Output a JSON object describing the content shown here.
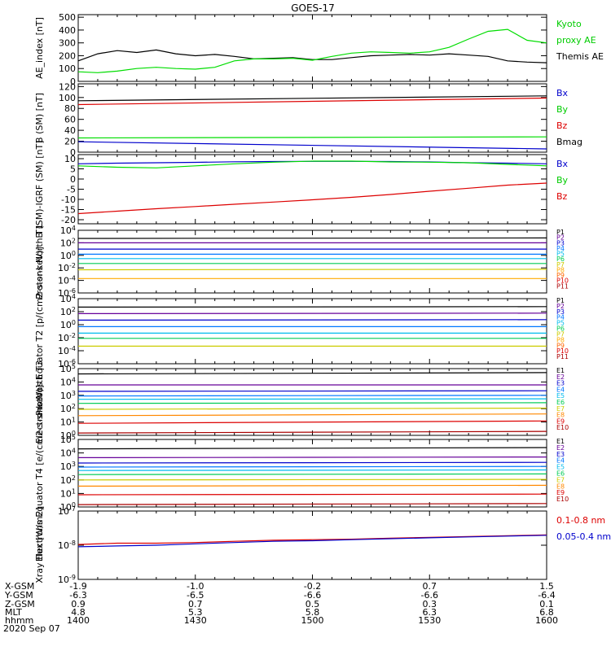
{
  "title": "GOES-17",
  "date": "2020 Sep 07",
  "colors": {
    "black": "#000000",
    "blue": "#0000cc",
    "green": "#00dd00",
    "red": "#dd0000",
    "label_green": "#00cc00"
  },
  "chart_data": [
    {
      "type": "line",
      "ylabel": "AE_index [nT]",
      "ylim": [
        0,
        520
      ],
      "yticks": [
        "0",
        "100",
        "200",
        "300",
        "400",
        "500"
      ],
      "legend": [
        {
          "text": "Kyoto",
          "color": "#00cc00"
        },
        {
          "text": "proxy AE",
          "color": "#00cc00"
        },
        {
          "text": "Themis AE",
          "color": "#000000"
        }
      ],
      "x": [
        0,
        5,
        10,
        15,
        20,
        25,
        30,
        35,
        40,
        45,
        50,
        55,
        60,
        65,
        70,
        75,
        80,
        85,
        90,
        95,
        100,
        105,
        110,
        115,
        120
      ],
      "series": [
        {
          "name": "Themis AE",
          "color": "#000000",
          "values": [
            160,
            215,
            240,
            225,
            245,
            215,
            200,
            210,
            195,
            175,
            180,
            185,
            170,
            170,
            185,
            200,
            205,
            210,
            205,
            215,
            205,
            195,
            160,
            150,
            145
          ]
        },
        {
          "name": "Kyoto proxy AE",
          "color": "#00dd00",
          "values": [
            75,
            68,
            80,
            100,
            110,
            100,
            95,
            110,
            160,
            175,
            175,
            180,
            165,
            195,
            220,
            230,
            225,
            220,
            230,
            265,
            330,
            390,
            405,
            320,
            300
          ]
        }
      ]
    },
    {
      "type": "line",
      "ylabel": "B (SM) [nT]",
      "ylim": [
        0,
        125
      ],
      "yticks": [
        "0",
        "20",
        "40",
        "60",
        "80",
        "100",
        "120"
      ],
      "legend": [
        {
          "text": "Bx",
          "color": "#0000cc"
        },
        {
          "text": "By",
          "color": "#00cc00"
        },
        {
          "text": "Bz",
          "color": "#dd0000"
        },
        {
          "text": "Bmag",
          "color": "#000000"
        }
      ],
      "x": [
        0,
        120
      ],
      "series": [
        {
          "name": "Bmag",
          "color": "#000000",
          "values": [
            94,
            103
          ]
        },
        {
          "name": "Bz",
          "color": "#dd0000",
          "values": [
            87,
            99
          ]
        },
        {
          "name": "By",
          "color": "#00dd00",
          "values": [
            26,
            28
          ]
        },
        {
          "name": "Bx",
          "color": "#0000cc",
          "values": [
            19,
            6
          ]
        }
      ]
    },
    {
      "type": "line",
      "ylabel": "B (SM)-IGRF (SM) [nT]",
      "ylim": [
        -22,
        12
      ],
      "yticks": [
        "-20",
        "-15",
        "-10",
        "-5",
        "0",
        "5",
        "10"
      ],
      "legend": [
        {
          "text": "Bx",
          "color": "#0000cc"
        },
        {
          "text": "By",
          "color": "#00cc00"
        },
        {
          "text": "Bz",
          "color": "#dd0000"
        }
      ],
      "x": [
        0,
        10,
        20,
        30,
        40,
        50,
        60,
        70,
        80,
        90,
        100,
        110,
        120
      ],
      "series": [
        {
          "name": "Bx",
          "color": "#0000cc",
          "values": [
            7.5,
            7.8,
            8.0,
            8.2,
            8.5,
            8.6,
            8.7,
            8.7,
            8.6,
            8.4,
            8.0,
            7.8,
            7.5
          ]
        },
        {
          "name": "By",
          "color": "#00dd00",
          "values": [
            6.5,
            5.8,
            5.5,
            6.5,
            7.5,
            8.3,
            8.8,
            8.8,
            8.4,
            8.3,
            8.0,
            7.2,
            6.5
          ]
        },
        {
          "name": "Bz",
          "color": "#dd0000",
          "values": [
            -17,
            -15.8,
            -14.6,
            -13.5,
            -12.4,
            -11.3,
            -10.2,
            -9.0,
            -7.6,
            -6.0,
            -4.5,
            -3.0,
            -2.0
          ]
        }
      ]
    },
    {
      "type": "line",
      "ylabel": "Protons North T1",
      "yscale": "log",
      "ylim": [
        1e-06,
        10000.0
      ],
      "yticks": [
        "10^-6",
        "10^-4",
        "10^-2",
        "10^0",
        "10^2",
        "10^4"
      ],
      "legend": [
        {
          "text": "P1",
          "color": "#000000"
        },
        {
          "text": "P2",
          "color": "#660099"
        },
        {
          "text": "P3",
          "color": "#0000cc"
        },
        {
          "text": "P4",
          "color": "#0077ff"
        },
        {
          "text": "P5",
          "color": "#00bbee"
        },
        {
          "text": "P6",
          "color": "#00cc55"
        },
        {
          "text": "P7",
          "color": "#cccc00"
        },
        {
          "text": "P8",
          "color": "#ffaa00"
        },
        {
          "text": "P9",
          "color": "#ff6600"
        },
        {
          "text": "P10",
          "color": "#dd0000"
        },
        {
          "text": "P11",
          "color": "#aa0000"
        }
      ],
      "x": [
        0,
        120
      ],
      "series": [
        {
          "name": "P1",
          "color": "#000000",
          "values": [
            500,
            600
          ]
        },
        {
          "name": "P2",
          "color": "#660099",
          "values": [
            100,
            100
          ]
        },
        {
          "name": "P3",
          "color": "#0000cc",
          "values": [
            10,
            10
          ]
        },
        {
          "name": "P4",
          "color": "#0077ff",
          "values": [
            1.5,
            1.5
          ]
        },
        {
          "name": "P5",
          "color": "#00bbee",
          "values": [
            0.3,
            0.3
          ]
        },
        {
          "name": "P6",
          "color": "#00cc55",
          "values": [
            0.05,
            0.05
          ]
        },
        {
          "name": "P7",
          "color": "#cccc00",
          "values": [
            0.005,
            0.006
          ]
        },
        {
          "name": "P8",
          "color": "#ffaa00",
          "values": [
            0.0002,
            0.0002
          ]
        }
      ]
    },
    {
      "type": "line",
      "ylabel": "Protons Equator T2 [p/(cm2-s-sr-keV)]",
      "yscale": "log",
      "ylim": [
        1e-06,
        10000.0
      ],
      "yticks": [
        "10^-6",
        "10^-4",
        "10^-2",
        "10^0",
        "10^2",
        "10^4"
      ],
      "legend": [
        {
          "text": "P1",
          "color": "#000000"
        },
        {
          "text": "P2",
          "color": "#660099"
        },
        {
          "text": "P3",
          "color": "#0000cc"
        },
        {
          "text": "P4",
          "color": "#0077ff"
        },
        {
          "text": "P5",
          "color": "#00bbee"
        },
        {
          "text": "P6",
          "color": "#00cc55"
        },
        {
          "text": "P7",
          "color": "#cccc00"
        },
        {
          "text": "P8",
          "color": "#ffaa00"
        },
        {
          "text": "P9",
          "color": "#ff6600"
        },
        {
          "text": "P10",
          "color": "#dd0000"
        },
        {
          "text": "P11",
          "color": "#aa0000"
        }
      ],
      "x": [
        0,
        120
      ],
      "series": [
        {
          "name": "P1",
          "color": "#000000",
          "values": [
            500,
            600
          ]
        },
        {
          "name": "P2",
          "color": "#660099",
          "values": [
            50,
            60
          ]
        },
        {
          "name": "P3",
          "color": "#0000cc",
          "values": [
            5,
            6
          ]
        },
        {
          "name": "P4",
          "color": "#0077ff",
          "values": [
            0.5,
            0.5
          ]
        },
        {
          "name": "P5",
          "color": "#00bbee",
          "values": [
            0.05,
            0.05
          ]
        },
        {
          "name": "P6",
          "color": "#00cc55",
          "values": [
            0.008,
            0.008
          ]
        },
        {
          "name": "P7",
          "color": "#cccc00",
          "values": [
            0.0005,
            0.0005
          ]
        }
      ]
    },
    {
      "type": "line",
      "ylabel": "Electrons North T3",
      "yscale": "log",
      "ylim": [
        1,
        100000.0
      ],
      "yticks": [
        "10^0",
        "10^1",
        "10^2",
        "10^3",
        "10^4",
        "10^5"
      ],
      "legend": [
        {
          "text": "E1",
          "color": "#000000"
        },
        {
          "text": "E2",
          "color": "#660099"
        },
        {
          "text": "E3",
          "color": "#0000cc"
        },
        {
          "text": "E4",
          "color": "#0077ff"
        },
        {
          "text": "E5",
          "color": "#00bbee"
        },
        {
          "text": "E6",
          "color": "#00cc55"
        },
        {
          "text": "E7",
          "color": "#cccc00"
        },
        {
          "text": "E8",
          "color": "#ff8800"
        },
        {
          "text": "E9",
          "color": "#dd0000"
        },
        {
          "text": "E10",
          "color": "#aa0000"
        }
      ],
      "x": [
        0,
        120
      ],
      "series": [
        {
          "name": "E1",
          "color": "#000000",
          "values": [
            40000,
            50000
          ]
        },
        {
          "name": "E2",
          "color": "#660099",
          "values": [
            6000,
            6000
          ]
        },
        {
          "name": "E3",
          "color": "#0000cc",
          "values": [
            2000,
            2200
          ]
        },
        {
          "name": "E4",
          "color": "#0077ff",
          "values": [
            900,
            1000
          ]
        },
        {
          "name": "E5",
          "color": "#00bbee",
          "values": [
            500,
            550
          ]
        },
        {
          "name": "E6",
          "color": "#00cc55",
          "values": [
            250,
            280
          ]
        },
        {
          "name": "E7",
          "color": "#cccc00",
          "values": [
            90,
            110
          ]
        },
        {
          "name": "E8",
          "color": "#ff8800",
          "values": [
            30,
            40
          ]
        },
        {
          "name": "E9",
          "color": "#dd0000",
          "values": [
            8,
            12
          ]
        },
        {
          "name": "E10",
          "color": "#aa0000",
          "values": [
            1.5,
            2
          ]
        }
      ]
    },
    {
      "type": "line",
      "ylabel": "Electrons Equator T4 [e/(cm2-s-sr-keV)]",
      "yscale": "log",
      "ylim": [
        1,
        100000.0
      ],
      "yticks": [
        "10^0",
        "10^1",
        "10^2",
        "10^3",
        "10^4",
        "10^5"
      ],
      "legend": [
        {
          "text": "E1",
          "color": "#000000"
        },
        {
          "text": "E2",
          "color": "#660099"
        },
        {
          "text": "E3",
          "color": "#0000cc"
        },
        {
          "text": "E4",
          "color": "#0077ff"
        },
        {
          "text": "E5",
          "color": "#00bbee"
        },
        {
          "text": "E6",
          "color": "#00cc55"
        },
        {
          "text": "E7",
          "color": "#cccc00"
        },
        {
          "text": "E8",
          "color": "#ff8800"
        },
        {
          "text": "E9",
          "color": "#dd0000"
        },
        {
          "text": "E10",
          "color": "#aa0000"
        }
      ],
      "x": [
        0,
        120
      ],
      "series": [
        {
          "name": "E1",
          "color": "#000000",
          "values": [
            20000,
            25000
          ]
        },
        {
          "name": "E2",
          "color": "#660099",
          "values": [
            4500,
            5000
          ]
        },
        {
          "name": "E3",
          "color": "#0000cc",
          "values": [
            1800,
            2000
          ]
        },
        {
          "name": "E4",
          "color": "#0077ff",
          "values": [
            900,
            1000
          ]
        },
        {
          "name": "E5",
          "color": "#00bbee",
          "values": [
            500,
            550
          ]
        },
        {
          "name": "E6",
          "color": "#00cc55",
          "values": [
            250,
            280
          ]
        },
        {
          "name": "E7",
          "color": "#cccc00",
          "values": [
            100,
            110
          ]
        },
        {
          "name": "E8",
          "color": "#ff8800",
          "values": [
            35,
            40
          ]
        },
        {
          "name": "E9",
          "color": "#dd0000",
          "values": [
            8,
            9
          ]
        },
        {
          "name": "E10",
          "color": "#aa0000",
          "values": [
            1.5,
            1.8
          ]
        }
      ]
    },
    {
      "type": "line",
      "ylabel": "Xray flux [W/m2]",
      "yscale": "log",
      "ylim": [
        1e-09,
        1e-07
      ],
      "yticks": [
        "10^-9",
        "10^-8",
        "10^-7"
      ],
      "legend": [
        {
          "text": "0.1-0.8 nm",
          "color": "#dd0000"
        },
        {
          "text": "0.05-0.4 nm",
          "color": "#0000cc"
        }
      ],
      "x": [
        0,
        10,
        20,
        30,
        40,
        50,
        60,
        70,
        80,
        90,
        100,
        110,
        120
      ],
      "series": [
        {
          "name": "0.1-0.8 nm",
          "color": "#dd0000",
          "values": [
            1.05e-08,
            1.15e-08,
            1.15e-08,
            1.2e-08,
            1.3e-08,
            1.4e-08,
            1.45e-08,
            1.5e-08,
            1.6e-08,
            1.7e-08,
            1.8e-08,
            1.9e-08,
            2e-08
          ]
        },
        {
          "name": "0.05-0.4 nm",
          "color": "#0000cc",
          "values": [
            9e-09,
            9.5e-09,
            1e-08,
            1.1e-08,
            1.2e-08,
            1.3e-08,
            1.35e-08,
            1.45e-08,
            1.55e-08,
            1.65e-08,
            1.75e-08,
            1.85e-08,
            1.95e-08
          ]
        }
      ]
    }
  ],
  "x_axis": {
    "labels": [
      "X-GSM",
      "Y-GSM",
      "Z-GSM",
      "MLT",
      "hhmm"
    ],
    "columns": [
      [
        "-1.9",
        "-6.3",
        "0.9",
        "4.8",
        "1400"
      ],
      [
        "-1.0",
        "-6.5",
        "0.7",
        "5.3",
        "1430"
      ],
      [
        "-0.2",
        "-6.6",
        "0.5",
        "5.8",
        "1500"
      ],
      [
        "0.7",
        "-6.6",
        "0.3",
        "6.3",
        "1530"
      ],
      [
        "1.5",
        "-6.4",
        "0.1",
        "6.8",
        "1600"
      ]
    ]
  }
}
